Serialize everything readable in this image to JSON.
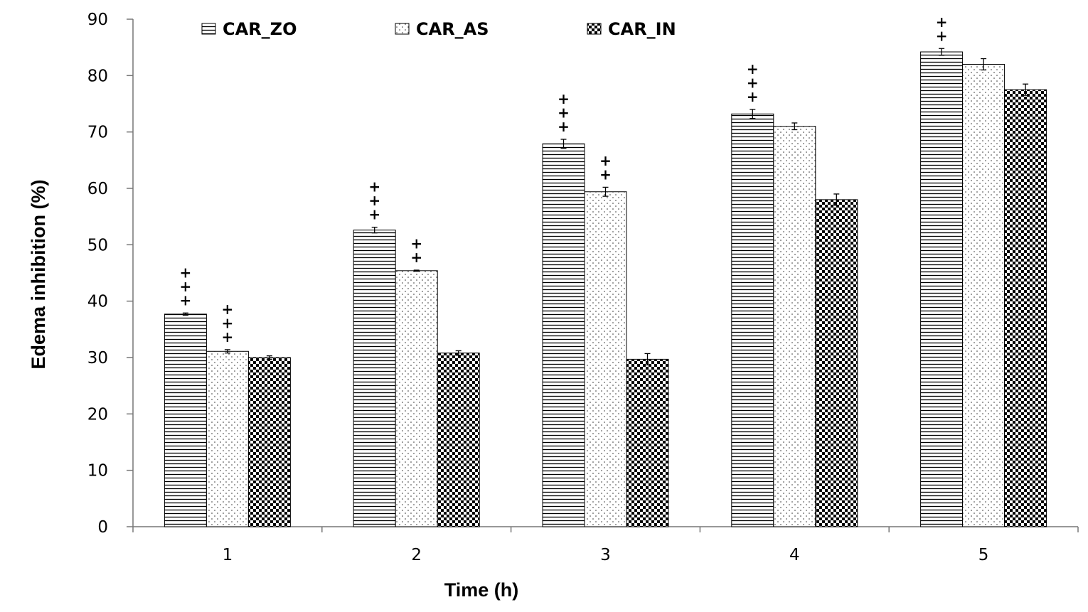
{
  "chart_data": {
    "type": "bar",
    "title": "",
    "xlabel": "Time (h)",
    "ylabel": "Edema inhibition (%)",
    "ylim": [
      0,
      90
    ],
    "yticks": [
      0,
      10,
      20,
      30,
      40,
      50,
      60,
      70,
      80,
      90
    ],
    "categories": [
      "1",
      "2",
      "3",
      "4",
      "5"
    ],
    "legend_position": "top",
    "series": [
      {
        "name": "CAR_ZO",
        "pattern": "horizontal-lines",
        "values": [
          37.7,
          52.6,
          67.9,
          73.2,
          84.2
        ],
        "errors": [
          0.2,
          0.5,
          0.8,
          0.8,
          0.6
        ],
        "significance": [
          "+++",
          "+++",
          "+++",
          "+++",
          "++"
        ]
      },
      {
        "name": "CAR_AS",
        "pattern": "dots",
        "values": [
          31.1,
          45.4,
          59.4,
          71.0,
          82.0
        ],
        "errors": [
          0.3,
          0.1,
          0.8,
          0.6,
          1.0
        ],
        "significance": [
          "+++",
          "++",
          "++",
          "",
          ""
        ]
      },
      {
        "name": "CAR_IN",
        "pattern": "checkerboard",
        "values": [
          30.0,
          30.8,
          29.7,
          58.0,
          77.5
        ],
        "errors": [
          0.3,
          0.4,
          1.0,
          1.0,
          1.0
        ],
        "significance": [
          "",
          "",
          "",
          "",
          ""
        ]
      }
    ]
  }
}
